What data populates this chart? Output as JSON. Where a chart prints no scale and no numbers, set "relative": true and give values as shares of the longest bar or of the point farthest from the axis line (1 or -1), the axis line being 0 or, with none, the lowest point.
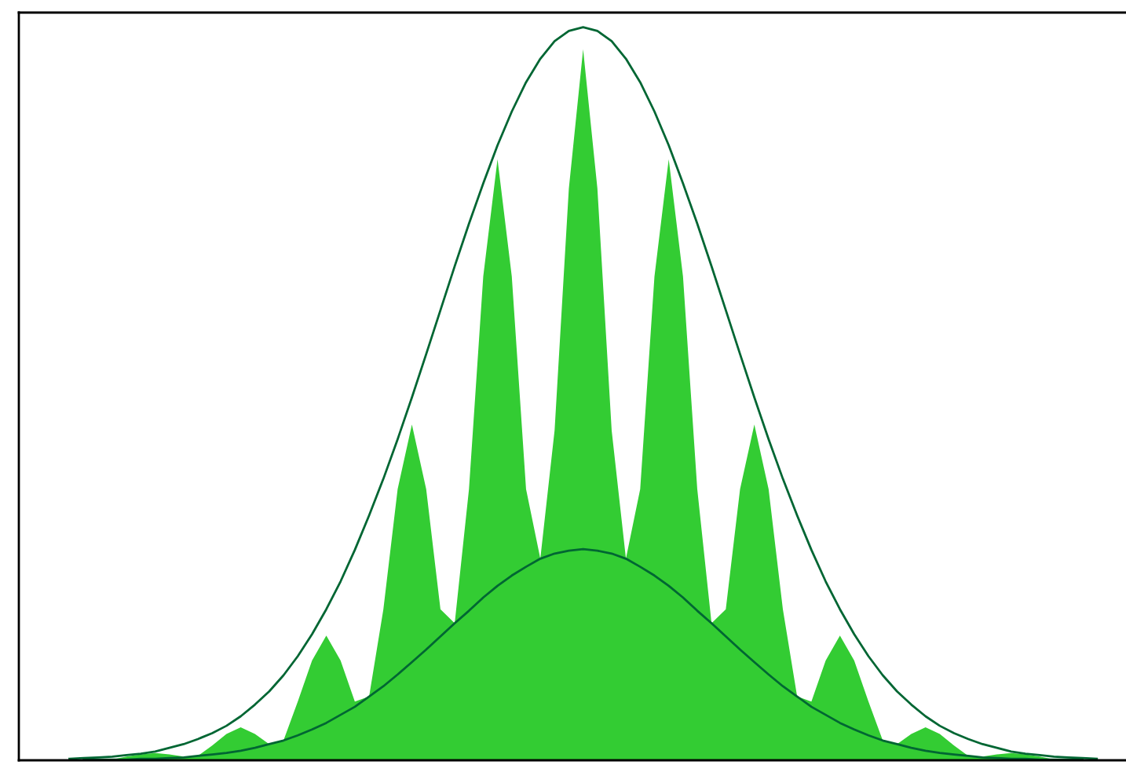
{
  "chart_data": {
    "type": "area",
    "relative": true,
    "tick_labels": false,
    "categories": [
      null,
      null,
      null,
      null,
      null,
      null,
      null,
      null,
      null,
      null,
      null,
      null,
      null,
      null,
      null,
      null,
      null,
      null,
      null,
      null,
      null,
      null,
      null,
      null,
      null,
      null,
      null,
      null,
      null,
      null,
      null,
      null,
      null,
      null,
      null,
      null,
      null,
      null,
      null,
      null,
      null,
      null,
      null,
      null,
      null,
      null,
      null,
      null,
      null,
      null,
      null,
      null,
      null,
      null,
      null,
      null,
      null,
      null,
      null,
      null,
      null,
      null,
      null,
      null,
      null,
      null,
      null,
      null,
      null,
      null,
      null,
      null,
      null,
      null,
      null,
      null,
      null,
      null
    ],
    "series": [
      {
        "color": "#33cc33",
        "values": [
          0,
          0,
          0,
          0,
          0,
          0,
          0.001,
          0.005,
          0.008,
          0.01,
          0.008,
          0.005,
          0.006,
          0.02,
          0.036,
          0.045,
          0.036,
          0.022,
          0.027,
          0.08,
          0.136,
          0.17,
          0.136,
          0.08,
          0.087,
          0.206,
          0.37,
          0.458,
          0.37,
          0.206,
          0.187,
          0.37,
          0.66,
          0.82,
          0.66,
          0.37,
          0.275,
          0.45,
          0.78,
          0.97,
          0.78,
          0.45,
          0.275,
          0.37,
          0.66,
          0.82,
          0.66,
          0.37,
          0.187,
          0.206,
          0.37,
          0.458,
          0.37,
          0.206,
          0.087,
          0.08,
          0.136,
          0.17,
          0.136,
          0.08,
          0.027,
          0.022,
          0.036,
          0.045,
          0.036,
          0.02,
          0.006,
          0.005,
          0.008,
          0.01,
          0.008,
          0.005,
          0.001,
          0,
          0,
          0,
          0,
          0
        ]
      },
      {
        "type": "line",
        "color": "#006633",
        "values": [
          null,
          null,
          null,
          0.002,
          0.003,
          0.004,
          0.005,
          0.007,
          0.009,
          0.012,
          0.017,
          0.022,
          0.029,
          0.037,
          0.047,
          0.06,
          0.076,
          0.094,
          0.116,
          0.142,
          0.172,
          0.206,
          0.244,
          0.287,
          0.334,
          0.384,
          0.438,
          0.495,
          0.554,
          0.614,
          0.674,
          0.732,
          0.787,
          0.839,
          0.885,
          0.925,
          0.957,
          0.981,
          0.995,
          1,
          0.995,
          0.981,
          0.957,
          0.925,
          0.885,
          0.839,
          0.787,
          0.732,
          0.674,
          0.614,
          0.554,
          0.495,
          0.438,
          0.384,
          0.334,
          0.287,
          0.244,
          0.206,
          0.172,
          0.142,
          0.116,
          0.094,
          0.076,
          0.06,
          0.047,
          0.037,
          0.029,
          0.022,
          0.017,
          0.012,
          0.009,
          0.007,
          0.005,
          0.004,
          0.003,
          0.002,
          null,
          null
        ]
      },
      {
        "type": "line",
        "color": "#006633",
        "values": [
          null,
          null,
          null,
          null,
          0.001,
          0.001,
          0.001,
          0.001,
          0.002,
          0.002,
          0.003,
          0.004,
          0.006,
          0.008,
          0.01,
          0.013,
          0.017,
          0.022,
          0.027,
          0.034,
          0.042,
          0.051,
          0.062,
          0.073,
          0.087,
          0.101,
          0.117,
          0.134,
          0.151,
          0.169,
          0.187,
          0.204,
          0.222,
          0.238,
          0.252,
          0.264,
          0.275,
          0.282,
          0.286,
          0.288,
          0.286,
          0.282,
          0.275,
          0.264,
          0.252,
          0.238,
          0.222,
          0.204,
          0.187,
          0.169,
          0.151,
          0.134,
          0.117,
          0.101,
          0.087,
          0.073,
          0.062,
          0.051,
          0.042,
          0.034,
          0.027,
          0.022,
          0.017,
          0.013,
          0.01,
          0.008,
          0.006,
          0.004,
          0.003,
          0.002,
          0.002,
          0.001,
          0.001,
          0.001,
          0.001,
          null,
          null,
          null
        ]
      }
    ]
  }
}
